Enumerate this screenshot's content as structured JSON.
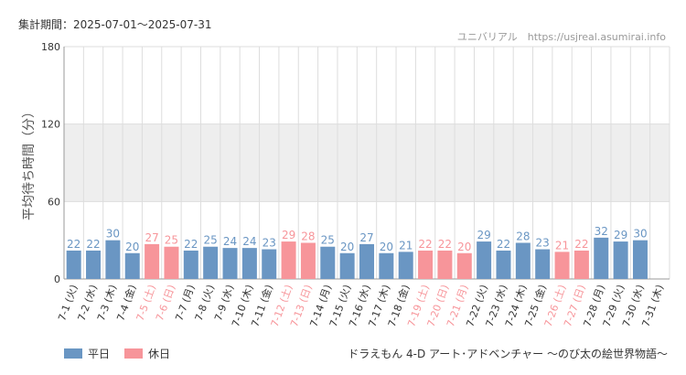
{
  "header": {
    "period": "集計期間：2025-07-01～2025-07-31",
    "site": "ユニバリアル　https://usjreal.asumirai.info"
  },
  "footer": {
    "subtitle": "ドラえもん 4-D アート･アドベンチャー ～のび太の絵世界物語～"
  },
  "legend": [
    {
      "label": "平日",
      "color": "#6a96c3"
    },
    {
      "label": "休日",
      "color": "#f7959a"
    }
  ],
  "colors": {
    "weekday": "#6a96c3",
    "holiday": "#f7959a",
    "band": "#eeeeee",
    "grid": "#dddddd"
  },
  "chart_data": {
    "type": "bar",
    "ylabel": "平均待ち時間（分）",
    "ylim": [
      0,
      180
    ],
    "yticks": [
      0,
      60,
      120,
      180
    ],
    "highlight_band": [
      60,
      120
    ],
    "grid": true,
    "legend_position": "bottom-left",
    "categories": [
      "7-1 (火)",
      "7-2 (水)",
      "7-3 (木)",
      "7-4 (金)",
      "7-5 (土)",
      "7-6 (日)",
      "7-7 (月)",
      "7-8 (火)",
      "7-9 (水)",
      "7-10 (木)",
      "7-11 (金)",
      "7-12 (土)",
      "7-13 (日)",
      "7-14 (月)",
      "7-15 (火)",
      "7-16 (水)",
      "7-17 (木)",
      "7-18 (金)",
      "7-19 (土)",
      "7-20 (日)",
      "7-21 (月)",
      "7-22 (火)",
      "7-23 (水)",
      "7-24 (木)",
      "7-25 (金)",
      "7-26 (土)",
      "7-27 (日)",
      "7-28 (月)",
      "7-29 (火)",
      "7-30 (水)",
      "7-31 (木)"
    ],
    "values": [
      22,
      22,
      30,
      20,
      27,
      25,
      22,
      25,
      24,
      24,
      23,
      29,
      28,
      25,
      20,
      27,
      20,
      21,
      22,
      22,
      20,
      29,
      22,
      28,
      23,
      21,
      22,
      32,
      29,
      30,
      null
    ],
    "day_type": [
      "平日",
      "平日",
      "平日",
      "平日",
      "休日",
      "休日",
      "平日",
      "平日",
      "平日",
      "平日",
      "平日",
      "休日",
      "休日",
      "平日",
      "平日",
      "平日",
      "平日",
      "平日",
      "休日",
      "休日",
      "休日",
      "平日",
      "平日",
      "平日",
      "平日",
      "休日",
      "休日",
      "平日",
      "平日",
      "平日",
      "平日"
    ]
  }
}
